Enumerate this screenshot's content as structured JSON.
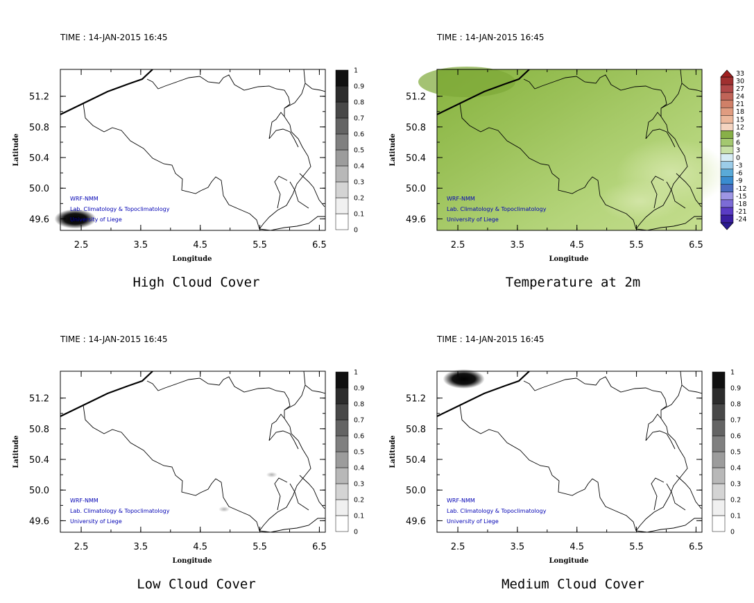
{
  "panels": [
    {
      "time": "TIME : 14-JAN-2015 16:45",
      "title": "High Cloud Cover",
      "xlabel": "Longitude",
      "ylabel": "Latitude",
      "field": "cloud-high",
      "colorbar": [
        "0",
        "0.1",
        "0.2",
        "0.3",
        "0.4",
        "0.5",
        "0.6",
        "0.7",
        "0.8",
        "0.9",
        "1"
      ]
    },
    {
      "time": "TIME : 14-JAN-2015 16:45",
      "title": "Temperature at 2m",
      "xlabel": "Longitude",
      "ylabel": "Latitude",
      "field": "temperature",
      "colorbar": [
        "-24",
        "-21",
        "-18",
        "-15",
        "-12",
        "-9",
        "-6",
        "-3",
        "0",
        "3",
        "6",
        "9",
        "12",
        "15",
        "18",
        "21",
        "24",
        "27",
        "30",
        "33"
      ]
    },
    {
      "time": "TIME : 14-JAN-2015 16:45",
      "title": "Low Cloud Cover",
      "xlabel": "Longitude",
      "ylabel": "Latitude",
      "field": "cloud-low",
      "colorbar": [
        "0",
        "0.1",
        "0.2",
        "0.3",
        "0.4",
        "0.5",
        "0.6",
        "0.7",
        "0.8",
        "0.9",
        "1"
      ]
    },
    {
      "time": "TIME : 14-JAN-2015 16:45",
      "title": "Medium Cloud Cover",
      "xlabel": "Longitude",
      "ylabel": "Latitude",
      "field": "cloud-medium",
      "colorbar": [
        "0",
        "0.1",
        "0.2",
        "0.3",
        "0.4",
        "0.5",
        "0.6",
        "0.7",
        "0.8",
        "0.9",
        "1"
      ]
    }
  ],
  "credits": [
    "WRF-NMM",
    "Lab. Climatology & Topoclimatology",
    "University of Liege"
  ],
  "chart_data": [
    {
      "type": "heatmap",
      "title": "High Cloud Cover",
      "xlabel": "Longitude",
      "ylabel": "Latitude",
      "xticks": [
        2.5,
        3.5,
        4.5,
        5.5,
        6.5
      ],
      "yticks": [
        49.6,
        50.0,
        50.4,
        50.8,
        51.2
      ],
      "xlim": [
        2.15,
        6.6
      ],
      "ylim": [
        49.45,
        51.55
      ],
      "colorbar_ticks": [
        0,
        0.1,
        0.2,
        0.3,
        0.4,
        0.5,
        0.6,
        0.7,
        0.8,
        0.9,
        1
      ],
      "features": [
        {
          "lon": 2.4,
          "lat": 49.6,
          "value": 0.95
        }
      ]
    },
    {
      "type": "heatmap",
      "title": "Temperature at 2m",
      "xlabel": "Longitude",
      "ylabel": "Latitude",
      "xticks": [
        2.5,
        3.5,
        4.5,
        5.5,
        6.5
      ],
      "yticks": [
        49.6,
        50.0,
        50.4,
        50.8,
        51.2
      ],
      "xlim": [
        2.15,
        6.6
      ],
      "ylim": [
        49.45,
        51.55
      ],
      "colorbar_ticks": [
        -24,
        -21,
        -18,
        -15,
        -12,
        -9,
        -6,
        -3,
        0,
        3,
        6,
        9,
        12,
        15,
        18,
        21,
        24,
        27,
        30,
        33
      ],
      "range_shown": [
        3,
        9
      ]
    },
    {
      "type": "heatmap",
      "title": "Low Cloud Cover",
      "xlabel": "Longitude",
      "ylabel": "Latitude",
      "xticks": [
        2.5,
        3.5,
        4.5,
        5.5,
        6.5
      ],
      "yticks": [
        49.6,
        50.0,
        50.4,
        50.8,
        51.2
      ],
      "xlim": [
        2.15,
        6.6
      ],
      "ylim": [
        49.45,
        51.55
      ],
      "colorbar_ticks": [
        0,
        0.1,
        0.2,
        0.3,
        0.4,
        0.5,
        0.6,
        0.7,
        0.8,
        0.9,
        1
      ],
      "features": [
        {
          "lon": 5.7,
          "lat": 50.2,
          "value": 0.2
        },
        {
          "lon": 4.9,
          "lat": 49.75,
          "value": 0.2
        }
      ]
    },
    {
      "type": "heatmap",
      "title": "Medium Cloud Cover",
      "xlabel": "Longitude",
      "ylabel": "Latitude",
      "xticks": [
        2.5,
        3.5,
        4.5,
        5.5,
        6.5
      ],
      "yticks": [
        49.6,
        50.0,
        50.4,
        50.8,
        51.2
      ],
      "xlim": [
        2.15,
        6.6
      ],
      "ylim": [
        49.45,
        51.55
      ],
      "colorbar_ticks": [
        0,
        0.1,
        0.2,
        0.3,
        0.4,
        0.5,
        0.6,
        0.7,
        0.8,
        0.9,
        1
      ],
      "features": [
        {
          "lon": 2.6,
          "lat": 51.45,
          "value": 0.95
        }
      ]
    }
  ]
}
